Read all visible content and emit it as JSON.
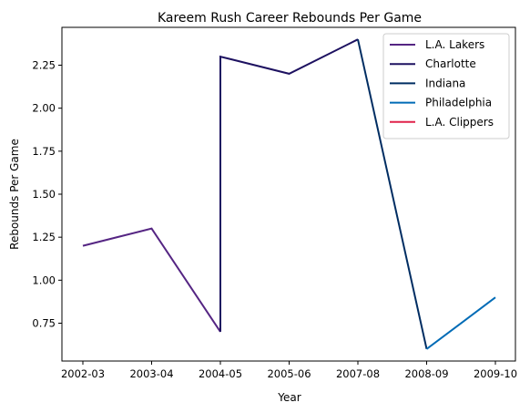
{
  "chart_data": {
    "type": "line",
    "title": "Kareem Rush Career Rebounds Per Game",
    "xlabel": "Year",
    "ylabel": "Rebounds Per Game",
    "categories": [
      "2002-03",
      "2003-04",
      "2004-05",
      "2005-06",
      "2007-08",
      "2008-09",
      "2009-10"
    ],
    "ylim": [
      0.53,
      2.47
    ],
    "yticks": [
      "0.75",
      "1.00",
      "1.25",
      "1.50",
      "1.75",
      "2.00",
      "2.25"
    ],
    "legend_position": "top-right",
    "grid": false,
    "series": [
      {
        "name": "L.A. Lakers",
        "color": "#552583",
        "points": [
          [
            "2002-03",
            1.2
          ],
          [
            "2003-04",
            1.3
          ],
          [
            "2004-05",
            0.7
          ]
        ]
      },
      {
        "name": "Charlotte",
        "color": "#1d1160",
        "points": [
          [
            "2004-05",
            0.7
          ],
          [
            "2004-05",
            2.3
          ],
          [
            "2005-06",
            2.2
          ],
          [
            "2007-08",
            2.4
          ]
        ]
      },
      {
        "name": "Indiana",
        "color": "#002d62",
        "points": [
          [
            "2007-08",
            2.4
          ],
          [
            "2008-09",
            0.6
          ]
        ]
      },
      {
        "name": "Philadelphia",
        "color": "#006bb6",
        "points": [
          [
            "2008-09",
            0.6
          ],
          [
            "2009-10",
            0.9
          ]
        ]
      },
      {
        "name": "L.A. Clippers",
        "color": "#e0224a",
        "points": []
      }
    ]
  }
}
